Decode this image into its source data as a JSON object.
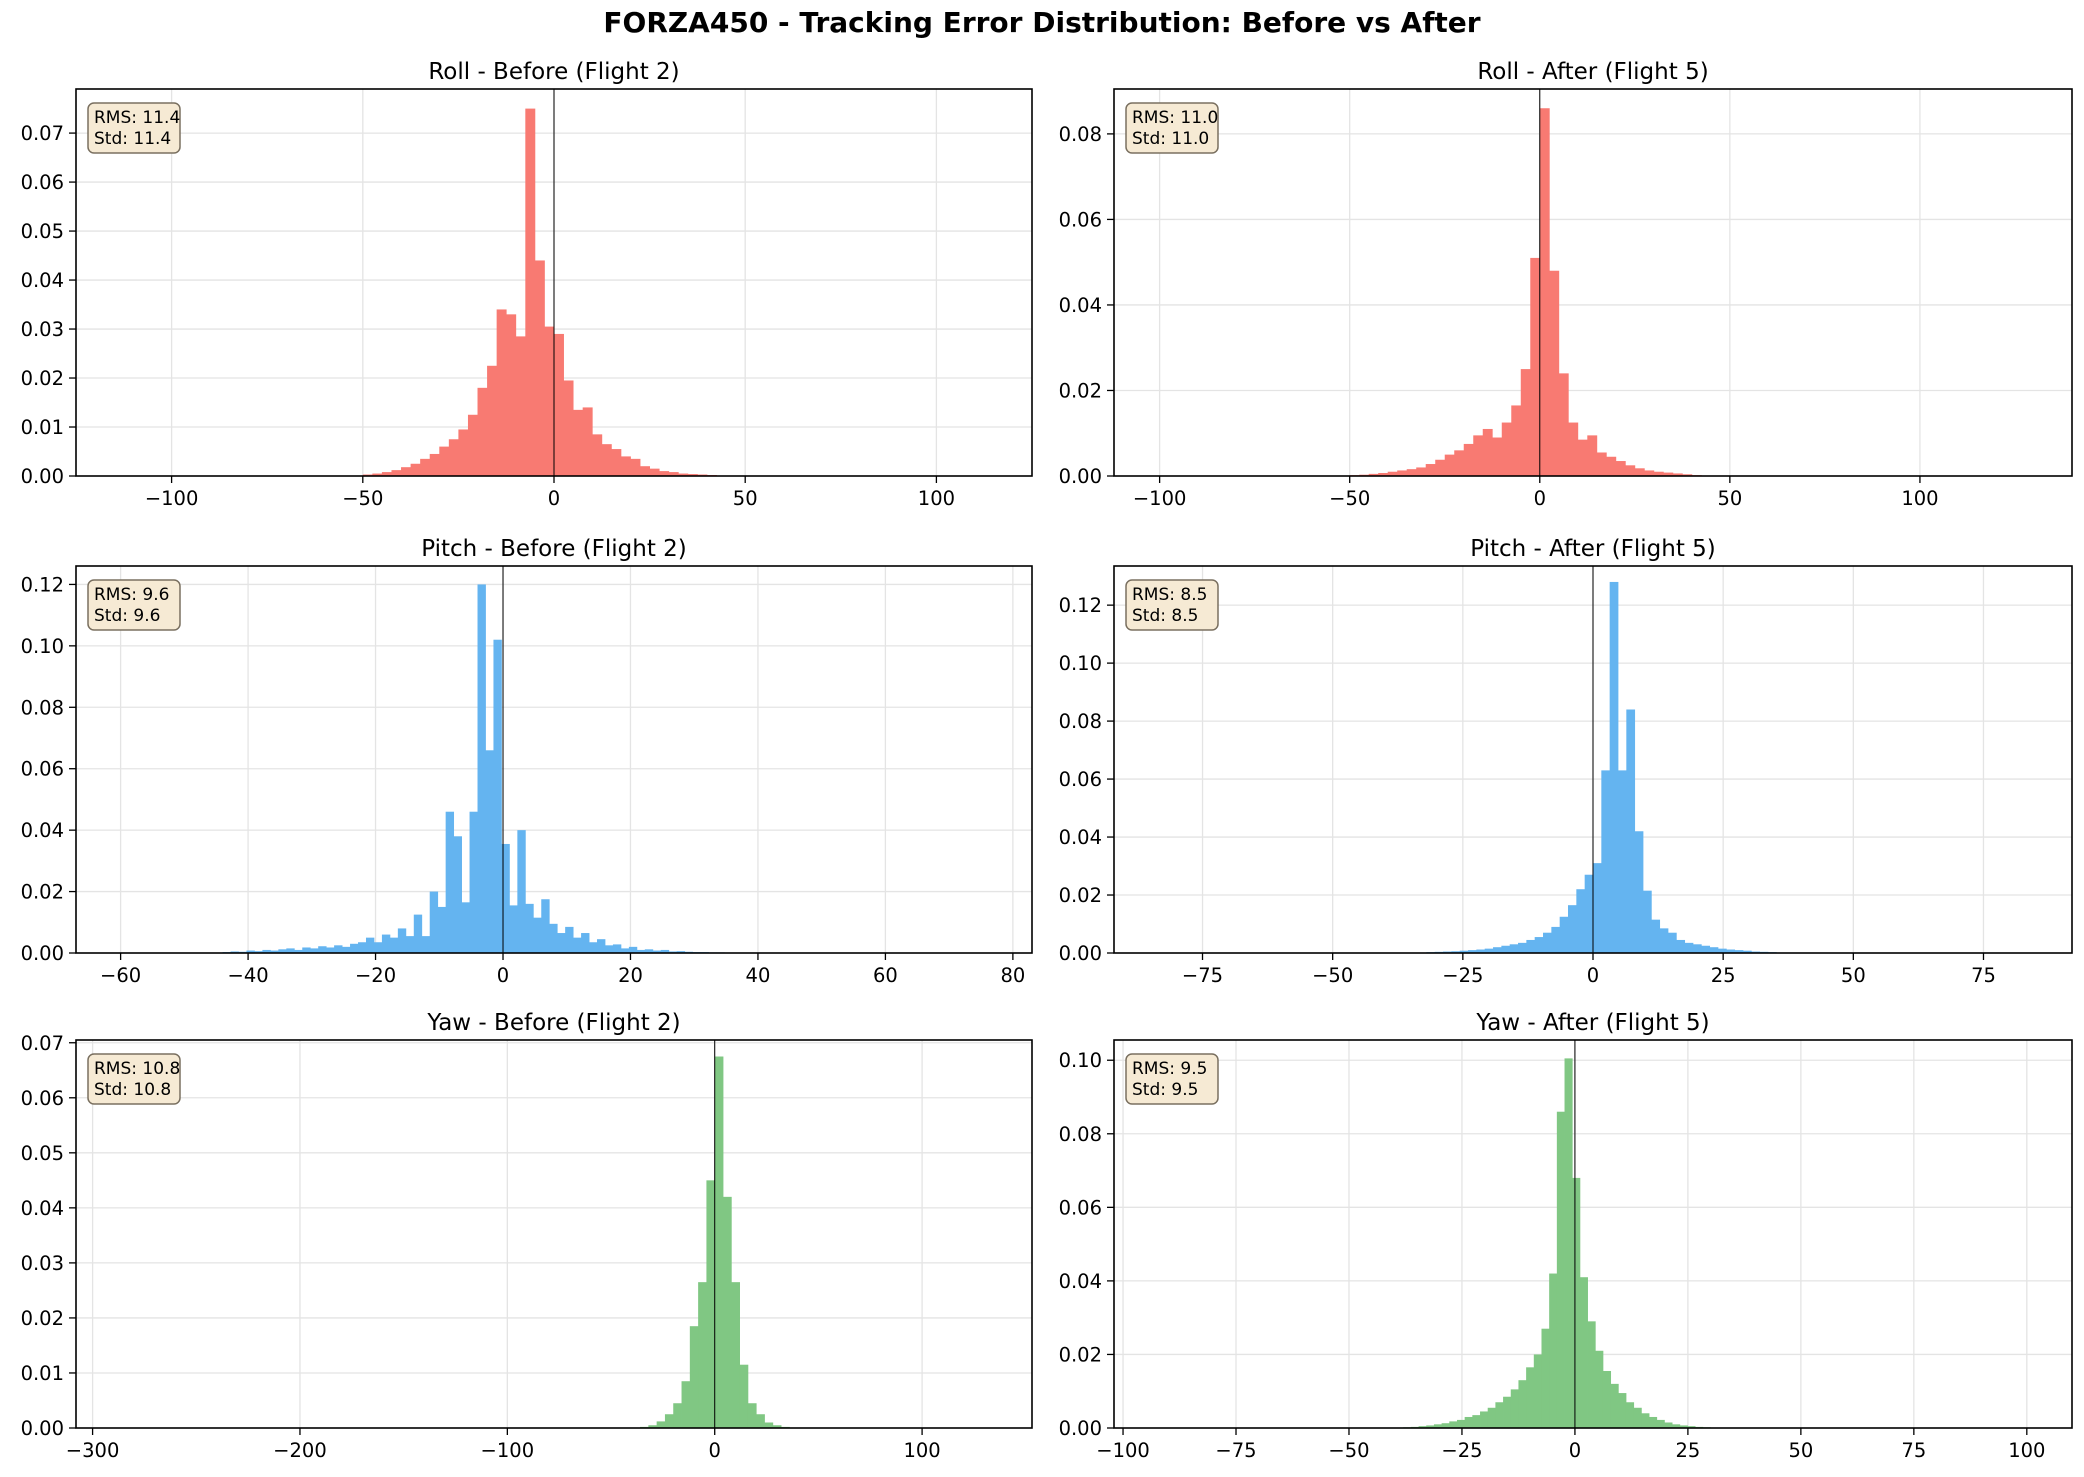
{
  "title": "FORZA450 - Tracking Error Distribution: Before vs After",
  "colors": {
    "roll": "#f87a72",
    "pitch": "#64b4f0",
    "yaw": "#80c783",
    "grid": "#e4e4e4",
    "statbox_fill": "#f6ead4",
    "statbox_edge": "#7a7060"
  },
  "chart_data": [
    {
      "type": "bar",
      "title": "Roll - Before (Flight 2)",
      "xlabel": "",
      "ylabel": "",
      "xlim": [
        -125,
        125
      ],
      "ylim": [
        0,
        0.079
      ],
      "xticks": [
        -100,
        -50,
        0,
        50,
        100
      ],
      "xtick_labels": [
        "−100",
        "−50",
        "0",
        "50",
        "100"
      ],
      "yticks": [
        0,
        0.01,
        0.02,
        0.03,
        0.04,
        0.05,
        0.06,
        0.07
      ],
      "ytick_labels": [
        "0.00",
        "0.01",
        "0.02",
        "0.03",
        "0.04",
        "0.05",
        "0.06",
        "0.07"
      ],
      "stats": {
        "rms": "RMS: 11.4",
        "std": "Std: 11.4"
      },
      "bin_start": -50,
      "bin_width": 2.5,
      "values": [
        0.0003,
        0.0005,
        0.0008,
        0.0012,
        0.0018,
        0.0025,
        0.0035,
        0.0045,
        0.006,
        0.0075,
        0.0095,
        0.0125,
        0.018,
        0.0225,
        0.034,
        0.033,
        0.0285,
        0.075,
        0.044,
        0.0305,
        0.029,
        0.0195,
        0.0135,
        0.014,
        0.0085,
        0.0065,
        0.0055,
        0.004,
        0.0035,
        0.002,
        0.0015,
        0.001,
        0.0008,
        0.0005,
        0.0004,
        0.0003,
        0.0002,
        0.0001,
        0.0001,
        0.0001
      ],
      "grid": true,
      "color_key": "roll"
    },
    {
      "type": "bar",
      "title": "Roll - After (Flight 5)",
      "xlabel": "",
      "ylabel": "",
      "xlim": [
        -112,
        140
      ],
      "ylim": [
        0,
        0.0905
      ],
      "xticks": [
        -100,
        -50,
        0,
        50,
        100
      ],
      "xtick_labels": [
        "−100",
        "−50",
        "0",
        "50",
        "100"
      ],
      "yticks": [
        0,
        0.02,
        0.04,
        0.06,
        0.08
      ],
      "ytick_labels": [
        "0.00",
        "0.02",
        "0.04",
        "0.06",
        "0.08"
      ],
      "stats": {
        "rms": "RMS: 11.0",
        "std": "Std: 11.0"
      },
      "bin_start": -50,
      "bin_width": 2.5,
      "values": [
        0.0002,
        0.0003,
        0.0005,
        0.0007,
        0.001,
        0.0013,
        0.0016,
        0.002,
        0.0028,
        0.0038,
        0.005,
        0.006,
        0.0075,
        0.0095,
        0.011,
        0.009,
        0.0125,
        0.0165,
        0.025,
        0.051,
        0.086,
        0.048,
        0.024,
        0.0125,
        0.0085,
        0.0095,
        0.0055,
        0.0045,
        0.0035,
        0.0025,
        0.0018,
        0.0013,
        0.001,
        0.0008,
        0.0006,
        0.0004,
        0.0002
      ],
      "grid": true,
      "color_key": "roll"
    },
    {
      "type": "bar",
      "title": "Pitch - Before (Flight 2)",
      "xlabel": "",
      "ylabel": "",
      "xlim": [
        -67,
        83
      ],
      "ylim": [
        0,
        0.126
      ],
      "xticks": [
        -60,
        -40,
        -20,
        0,
        20,
        40,
        60,
        80
      ],
      "xtick_labels": [
        "−60",
        "−40",
        "−20",
        "0",
        "20",
        "40",
        "60",
        "80"
      ],
      "yticks": [
        0,
        0.02,
        0.04,
        0.06,
        0.08,
        0.1,
        0.12
      ],
      "ytick_labels": [
        "0.00",
        "0.02",
        "0.04",
        "0.06",
        "0.08",
        "0.10",
        "0.12"
      ],
      "stats": {
        "rms": "RMS: 9.6",
        "std": "Std: 9.6"
      },
      "bin_start": -44,
      "bin_width": 1.25,
      "values": [
        0.0003,
        0.0005,
        0.0004,
        0.0008,
        0.0006,
        0.001,
        0.0008,
        0.0012,
        0.0015,
        0.001,
        0.0018,
        0.0015,
        0.0022,
        0.0018,
        0.0025,
        0.002,
        0.003,
        0.0035,
        0.005,
        0.0035,
        0.006,
        0.005,
        0.008,
        0.0055,
        0.0125,
        0.0055,
        0.02,
        0.015,
        0.046,
        0.038,
        0.0165,
        0.046,
        0.12,
        0.066,
        0.102,
        0.0355,
        0.0155,
        0.04,
        0.016,
        0.0115,
        0.0175,
        0.0095,
        0.0065,
        0.0085,
        0.005,
        0.0065,
        0.0035,
        0.0045,
        0.0025,
        0.0028,
        0.0015,
        0.002,
        0.001,
        0.0012,
        0.0008,
        0.001,
        0.0005,
        0.0006,
        0.0004,
        0.0003,
        0.0003,
        0.0002,
        0.0002,
        0.0001
      ],
      "grid": true,
      "color_key": "pitch"
    },
    {
      "type": "bar",
      "title": "Pitch - After (Flight 5)",
      "xlabel": "",
      "ylabel": "",
      "xlim": [
        -92,
        92
      ],
      "ylim": [
        0,
        0.1335
      ],
      "xticks": [
        -75,
        -50,
        -25,
        0,
        25,
        50,
        75
      ],
      "xtick_labels": [
        "−75",
        "−50",
        "−25",
        "0",
        "25",
        "50",
        "75"
      ],
      "yticks": [
        0,
        0.02,
        0.04,
        0.06,
        0.08,
        0.1,
        0.12
      ],
      "ytick_labels": [
        "0.00",
        "0.02",
        "0.04",
        "0.06",
        "0.08",
        "0.10",
        "0.12"
      ],
      "stats": {
        "rms": "RMS: 8.5",
        "std": "Std: 8.5"
      },
      "bin_start": -32,
      "bin_width": 1.6,
      "values": [
        0.0003,
        0.0004,
        0.0005,
        0.0006,
        0.0008,
        0.001,
        0.0012,
        0.0015,
        0.002,
        0.0025,
        0.003,
        0.0035,
        0.0045,
        0.0055,
        0.007,
        0.009,
        0.0125,
        0.0165,
        0.022,
        0.027,
        0.031,
        0.063,
        0.128,
        0.063,
        0.084,
        0.042,
        0.0215,
        0.0115,
        0.0085,
        0.007,
        0.0045,
        0.0035,
        0.003,
        0.0025,
        0.002,
        0.0015,
        0.0012,
        0.001,
        0.0008,
        0.0005,
        0.0004,
        0.0003
      ],
      "grid": true,
      "color_key": "pitch"
    },
    {
      "type": "bar",
      "title": "Yaw - Before (Flight 2)",
      "xlabel": "",
      "ylabel": "",
      "xlim": [
        -308,
        153
      ],
      "ylim": [
        0,
        0.0705
      ],
      "xticks": [
        -300,
        -200,
        -100,
        0,
        100
      ],
      "xtick_labels": [
        "−300",
        "−200",
        "−100",
        "0",
        "100"
      ],
      "yticks": [
        0,
        0.01,
        0.02,
        0.03,
        0.04,
        0.05,
        0.06,
        0.07
      ],
      "ytick_labels": [
        "0.00",
        "0.01",
        "0.02",
        "0.03",
        "0.04",
        "0.05",
        "0.06",
        "0.07"
      ],
      "stats": {
        "rms": "RMS: 10.8",
        "std": "Std: 10.8"
      },
      "bin_start": -36,
      "bin_width": 4,
      "values": [
        0.0002,
        0.0005,
        0.0012,
        0.0025,
        0.0045,
        0.0085,
        0.0185,
        0.0265,
        0.045,
        0.0675,
        0.042,
        0.0265,
        0.0115,
        0.0045,
        0.0025,
        0.001,
        0.0005,
        0.0002
      ],
      "grid": true,
      "color_key": "yaw"
    },
    {
      "type": "bar",
      "title": "Yaw - After (Flight 5)",
      "xlabel": "",
      "ylabel": "",
      "xlim": [
        -102,
        110
      ],
      "ylim": [
        0,
        0.1055
      ],
      "xticks": [
        -100,
        -75,
        -50,
        -25,
        0,
        25,
        50,
        75,
        100
      ],
      "xtick_labels": [
        "−100",
        "−75",
        "−50",
        "−25",
        "0",
        "25",
        "50",
        "75",
        "100"
      ],
      "yticks": [
        0,
        0.02,
        0.04,
        0.06,
        0.08,
        0.1
      ],
      "ytick_labels": [
        "0.00",
        "0.02",
        "0.04",
        "0.06",
        "0.08",
        "0.10"
      ],
      "stats": {
        "rms": "RMS: 9.5",
        "std": "Std: 9.5"
      },
      "bin_start": -38,
      "bin_width": 1.7,
      "values": [
        0.0002,
        0.0003,
        0.0005,
        0.0007,
        0.001,
        0.0013,
        0.0018,
        0.0022,
        0.003,
        0.0035,
        0.0045,
        0.0055,
        0.007,
        0.0085,
        0.0105,
        0.013,
        0.0165,
        0.02,
        0.027,
        0.042,
        0.086,
        0.1005,
        0.068,
        0.041,
        0.029,
        0.021,
        0.0155,
        0.012,
        0.0095,
        0.007,
        0.0055,
        0.004,
        0.003,
        0.0022,
        0.0015,
        0.001,
        0.0007,
        0.0005,
        0.0003,
        0.0002
      ],
      "grid": true,
      "color_key": "yaw"
    }
  ]
}
